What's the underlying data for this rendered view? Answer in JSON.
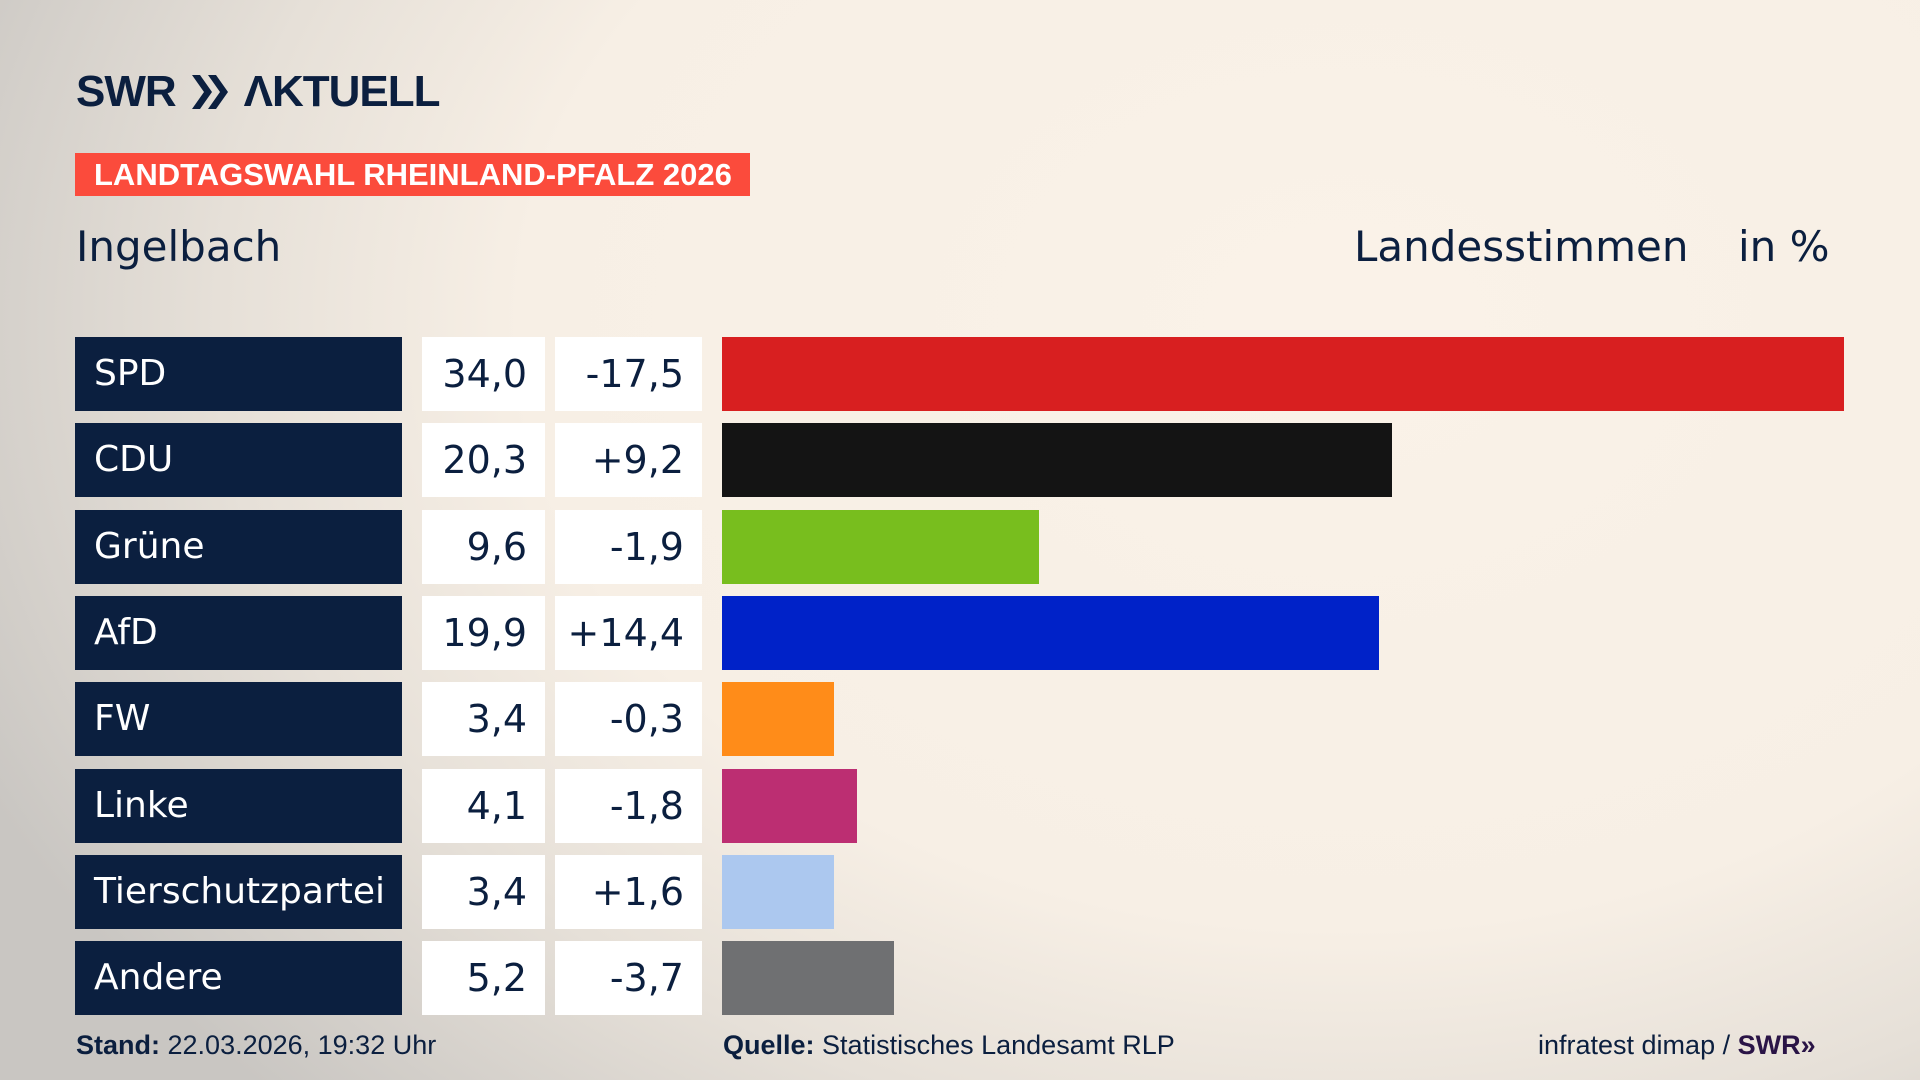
{
  "header": {
    "logo_text": "SWR AKTUELL",
    "banner": "LANDTAGSWAHL RHEINLAND-PFALZ 2026",
    "region": "Ingelbach",
    "measure": "Landesstimmen",
    "unit": "in %"
  },
  "chart_data": {
    "type": "bar",
    "orientation": "horizontal",
    "categories": [
      "SPD",
      "CDU",
      "Grüne",
      "AfD",
      "FW",
      "Linke",
      "Tierschutzpartei",
      "Andere"
    ],
    "values": [
      34.0,
      20.3,
      9.6,
      19.9,
      3.4,
      4.1,
      3.4,
      5.2
    ],
    "value_labels": [
      "34,0",
      "20,3",
      "9,6",
      "19,9",
      "3,4",
      "4,1",
      "3,4",
      "5,2"
    ],
    "diff_labels": [
      "-17,5",
      "+9,2",
      "-1,9",
      "+14,4",
      "-0,3",
      "-1,8",
      "+1,6",
      "-3,7"
    ],
    "colors": [
      "#d81f20",
      "#141414",
      "#78be1e",
      "#0022c8",
      "#ff8c19",
      "#bc2e72",
      "#acc8ef",
      "#6f7072"
    ],
    "xlim": [
      0,
      34.0
    ],
    "grid": false
  },
  "footer": {
    "stand_label": "Stand:",
    "stand_value": "22.03.2026, 19:32 Uhr",
    "source_label": "Quelle:",
    "source_value": "Statistisches Landesamt RLP",
    "credit": "infratest dimap /",
    "credit_logo": "SWR"
  }
}
